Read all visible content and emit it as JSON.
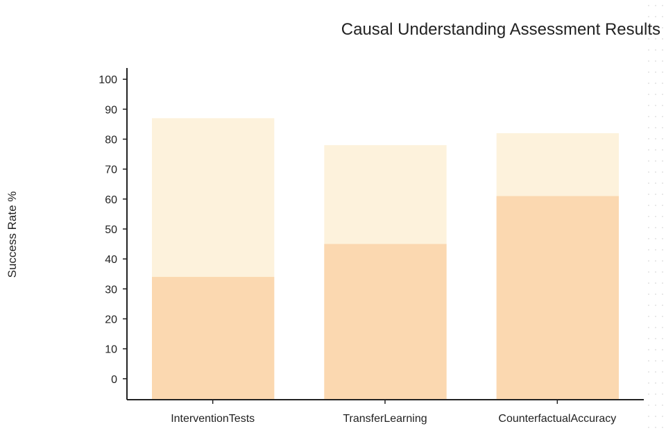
{
  "chart_data": {
    "type": "bar",
    "title": "Causal Understanding Assessment Results",
    "ylabel": "Success Rate %",
    "xlabel": "",
    "categories": [
      "InterventionTests",
      "TransferLearning",
      "CounterfactualAccuracy"
    ],
    "series": [
      {
        "values": [
          87,
          78,
          82
        ],
        "color": "#fdf2dc"
      },
      {
        "values": [
          34,
          45,
          61
        ],
        "color": "#fbd8b0"
      }
    ],
    "ylim": [
      -7,
      107
    ],
    "yticks": [
      0,
      10,
      20,
      30,
      40,
      50,
      60,
      70,
      80,
      90,
      100
    ],
    "grid": false,
    "legend": "none"
  }
}
